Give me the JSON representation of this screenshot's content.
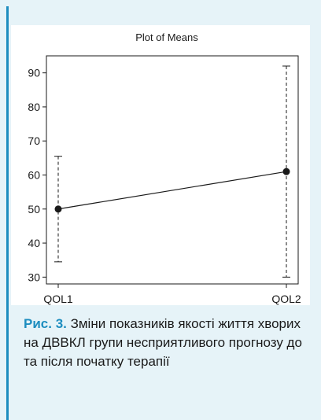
{
  "chart_data": {
    "type": "line",
    "title": "Plot of Means",
    "categories": [
      "QOL1",
      "QOL2"
    ],
    "series": [
      {
        "means": [
          50,
          61
        ],
        "upper": [
          65.5,
          92
        ],
        "lower": [
          34.5,
          30
        ]
      }
    ],
    "ylim": [
      28,
      95
    ],
    "yticks": [
      30,
      40,
      50,
      60,
      70,
      80,
      90
    ],
    "grid": false,
    "legend": "none"
  },
  "caption": {
    "label": "Рис. 3.",
    "text": " Зміни показників якості життя хворих на ДВВКЛ групи несприятливого прогнозу до та після початку терапії"
  },
  "colors": {
    "accent": "#1d8dbf",
    "background": "#e6f3f8",
    "plot_background": "#ffffff",
    "ink": "#1a1a1a"
  }
}
